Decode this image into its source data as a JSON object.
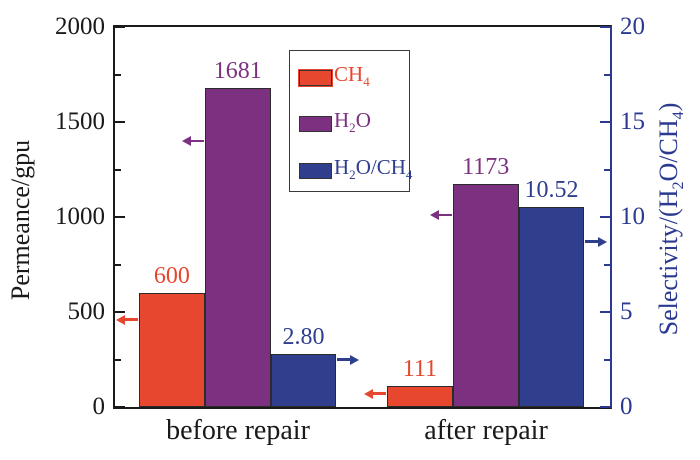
{
  "chart_data": {
    "type": "bar",
    "title": "",
    "categories": [
      "before repair",
      "after repair"
    ],
    "series": [
      {
        "id": "ch4",
        "name": "CH₄",
        "axis": "left",
        "color": "#e6472e",
        "values": [
          600,
          111
        ],
        "value_labels": [
          "600",
          "111"
        ],
        "arrow_dir": "left",
        "arrow_at": [
          460,
          70
        ]
      },
      {
        "id": "h2o",
        "name": "H₂O",
        "axis": "left",
        "color": "#7c3180",
        "values": [
          1681,
          1173
        ],
        "value_labels": [
          "1681",
          "1173"
        ],
        "arrow_dir": "left",
        "arrow_at": [
          1400,
          1010
        ]
      },
      {
        "id": "h2o-ch4",
        "name": "H₂O/CH₄",
        "axis": "right",
        "color": "#303e8e",
        "values": [
          2.8,
          10.52
        ],
        "value_labels": [
          "2.80",
          "10.52"
        ],
        "arrow_dir": "right",
        "arrow_at": [
          2.5,
          8.7
        ]
      }
    ],
    "left_axis": {
      "label": "Permeance/gpu",
      "min": 0,
      "max": 2000,
      "major_ticks": [
        0,
        500,
        1000,
        1500,
        2000
      ],
      "minor_step": 250,
      "color": "#1a1a1a"
    },
    "right_axis": {
      "label": "Selectivity/(H₂O/CH₄)",
      "min": 0,
      "max": 20,
      "major_ticks": [
        0,
        5,
        10,
        15,
        20
      ],
      "minor_step": 2.5,
      "color": "#2b3a90"
    },
    "legend": {
      "position": "upper-middle-left",
      "entries": [
        "CH₄",
        "H₂O",
        "H₂O/CH₄"
      ]
    },
    "grid": false
  }
}
